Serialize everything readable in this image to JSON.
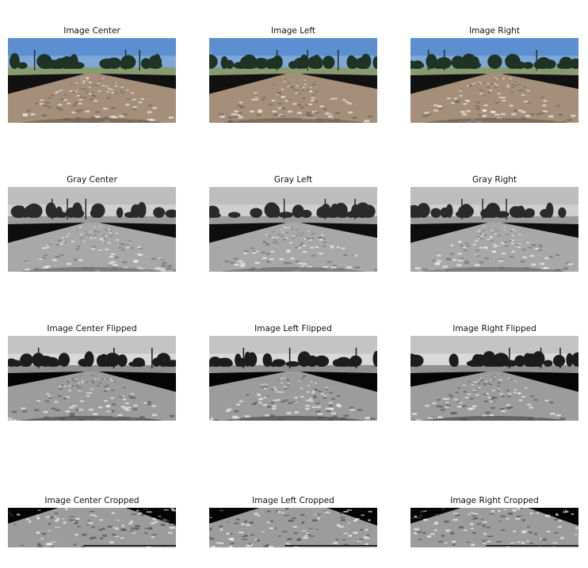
{
  "rows": [
    {
      "id": "color",
      "style": "color",
      "flip": false,
      "crop": false,
      "panels": [
        {
          "title": "Image Center"
        },
        {
          "title": "Image Left"
        },
        {
          "title": "Image Right"
        }
      ]
    },
    {
      "id": "gray",
      "style": "gray",
      "flip": false,
      "crop": false,
      "panels": [
        {
          "title": "Gray Center"
        },
        {
          "title": "Gray Left"
        },
        {
          "title": "Gray Right"
        }
      ]
    },
    {
      "id": "flipped",
      "style": "gray-contrast",
      "flip": true,
      "crop": false,
      "panels": [
        {
          "title": "Image Center Flipped"
        },
        {
          "title": "Image Left Flipped"
        },
        {
          "title": "Image Right Flipped"
        }
      ]
    },
    {
      "id": "cropped",
      "style": "gray-contrast",
      "flip": true,
      "crop": true,
      "panels": [
        {
          "title": "Image Center Cropped"
        },
        {
          "title": "Image Left Cropped"
        },
        {
          "title": "Image Right Cropped"
        }
      ]
    }
  ],
  "palette": {
    "color": {
      "sky": "#7fa7d8",
      "skyTop": "#5b8fcf",
      "trees": "#1f3325",
      "hill": "#8a9a70",
      "road": "#a58f7a",
      "roadDark": "#6e5d50",
      "shoulder": "#111111",
      "hood": "#c9b79c"
    },
    "gray": {
      "sky": "#cfcfcf",
      "skyTop": "#bdbdbd",
      "trees": "#2a2a2a",
      "hill": "#9a9a9a",
      "road": "#a8a8a8",
      "roadDark": "#6a6a6a",
      "shoulder": "#0e0e0e",
      "hood": "#d0d0d0"
    },
    "gray-contrast": {
      "sky": "#d9d9d9",
      "skyTop": "#c4c4c4",
      "trees": "#1c1c1c",
      "hill": "#8f8f8f",
      "road": "#9c9c9c",
      "roadDark": "#4a4a4a",
      "shoulder": "#050505",
      "hood": "#e0e0e0"
    }
  }
}
